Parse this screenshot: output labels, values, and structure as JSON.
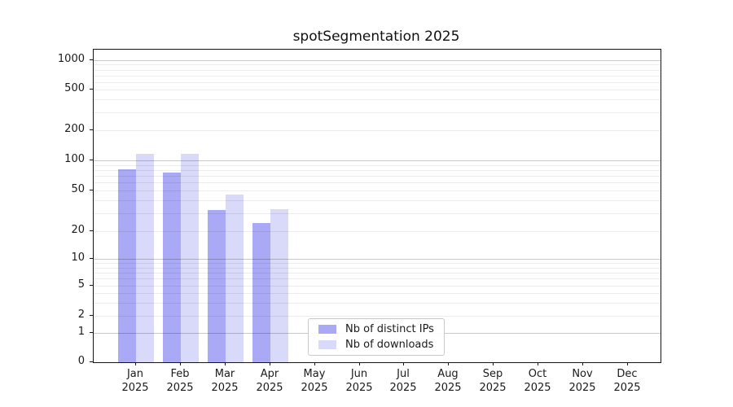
{
  "title": "spotSegmentation 2025",
  "chart_data": {
    "type": "bar",
    "title": "spotSegmentation 2025",
    "categories": [
      "Jan 2025",
      "Feb 2025",
      "Mar 2025",
      "Apr 2025",
      "May 2025",
      "Jun 2025",
      "Jul 2025",
      "Aug 2025",
      "Sep 2025",
      "Oct 2025",
      "Nov 2025",
      "Dec 2025"
    ],
    "x_tick_months": [
      "Jan",
      "Feb",
      "Mar",
      "Apr",
      "May",
      "Jun",
      "Jul",
      "Aug",
      "Sep",
      "Oct",
      "Nov",
      "Dec"
    ],
    "x_tick_year": "2025",
    "series": [
      {
        "name": "Nb of distinct IPs",
        "color": "#a9a9f6",
        "values": [
          81,
          75,
          32,
          24,
          0,
          0,
          0,
          0,
          0,
          0,
          0,
          0
        ]
      },
      {
        "name": "Nb of downloads",
        "color": "#d9d9f9",
        "values": [
          116,
          117,
          46,
          33,
          0,
          0,
          0,
          0,
          0,
          0,
          0,
          0
        ]
      }
    ],
    "yticks": [
      0,
      1,
      2,
      5,
      10,
      20,
      50,
      100,
      200,
      500,
      1000
    ],
    "yscale": "symlog",
    "ylim": [
      0,
      1280
    ],
    "grid": "on",
    "legend_position": "lower center",
    "xlabel": "",
    "ylabel": ""
  },
  "colors": {
    "bar_distinct_ips": "#a9a9f6",
    "bar_downloads": "#d9d9f9",
    "grid_minor": "rgba(0,0,0,0.075)",
    "grid_major": "rgba(0,0,0,0.21)",
    "axis": "#151515",
    "text": "#1a1a1a"
  }
}
